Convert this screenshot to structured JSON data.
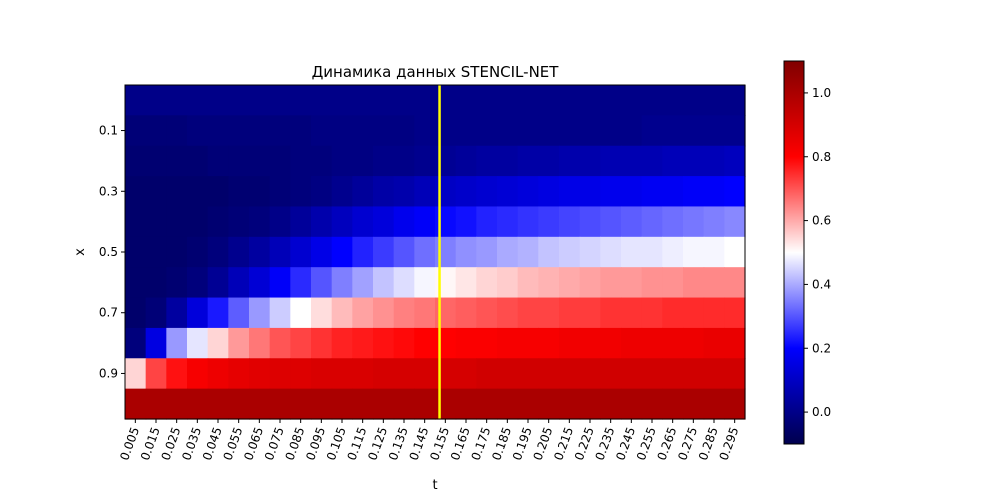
{
  "chart_data": {
    "type": "heatmap",
    "title": "Динамика данных STENCIL-NET",
    "xlabel": "t",
    "ylabel": "x",
    "x_tick_labels": [
      "0.005",
      "0.015",
      "0.025",
      "0.035",
      "0.045",
      "0.055",
      "0.065",
      "0.075",
      "0.085",
      "0.095",
      "0.105",
      "0.115",
      "0.125",
      "0.135",
      "0.145",
      "0.155",
      "0.165",
      "0.175",
      "0.185",
      "0.195",
      "0.205",
      "0.215",
      "0.225",
      "0.235",
      "0.245",
      "0.255",
      "0.265",
      "0.275",
      "0.285",
      "0.295"
    ],
    "y_tick_labels": [
      "0.1",
      "0.3",
      "0.5",
      "0.7",
      "0.9"
    ],
    "x_values": [
      0.0,
      0.01,
      0.02,
      0.03,
      0.04,
      0.05,
      0.06,
      0.07,
      0.08,
      0.09,
      0.1,
      0.11,
      0.12,
      0.13,
      0.14,
      0.15,
      0.16,
      0.17,
      0.18,
      0.19,
      0.2,
      0.21,
      0.22,
      0.23,
      0.24,
      0.25,
      0.26,
      0.27,
      0.28,
      0.29
    ],
    "y_values": [
      0.0,
      0.1,
      0.2,
      0.3,
      0.4,
      0.5,
      0.6,
      0.7,
      0.8,
      0.9,
      1.0
    ],
    "colorbar": {
      "colormap": "seismic",
      "vmin": -0.1,
      "vmax": 1.1,
      "ticks": [
        "0.0",
        "0.2",
        "0.4",
        "0.6",
        "0.8",
        "1.0"
      ]
    },
    "vertical_marker": {
      "t": 0.15,
      "color": "#ffff00"
    },
    "grid": false,
    "values": [
      [
        0.0,
        0.0,
        0.0,
        0.0,
        0.0,
        0.0,
        0.0,
        0.0,
        0.0,
        0.0,
        0.0,
        0.0,
        0.0,
        0.0,
        0.0,
        0.0,
        0.0,
        0.0,
        0.0,
        0.0,
        0.0,
        0.0,
        0.0,
        0.0,
        0.0,
        0.0,
        0.0,
        0.0,
        0.0,
        0.0
      ],
      [
        -0.03,
        -0.03,
        -0.03,
        -0.02,
        -0.02,
        -0.02,
        -0.02,
        -0.02,
        -0.02,
        -0.01,
        -0.01,
        -0.01,
        -0.01,
        -0.01,
        0.0,
        0.0,
        0.0,
        0.0,
        0.0,
        0.0,
        0.0,
        0.0,
        0.0,
        0.0,
        0.0,
        0.01,
        0.01,
        0.01,
        0.01,
        0.01
      ],
      [
        -0.04,
        -0.04,
        -0.04,
        -0.04,
        -0.03,
        -0.03,
        -0.03,
        -0.03,
        -0.02,
        -0.02,
        -0.01,
        -0.01,
        0.0,
        0.0,
        0.01,
        0.02,
        0.03,
        0.04,
        0.04,
        0.05,
        0.05,
        0.06,
        0.06,
        0.07,
        0.07,
        0.07,
        0.08,
        0.08,
        0.08,
        0.09
      ],
      [
        -0.05,
        -0.05,
        -0.05,
        -0.05,
        -0.05,
        -0.04,
        -0.04,
        -0.03,
        -0.02,
        -0.01,
        0.01,
        0.03,
        0.05,
        0.06,
        0.08,
        0.1,
        0.11,
        0.12,
        0.13,
        0.14,
        0.15,
        0.16,
        0.16,
        0.17,
        0.17,
        0.18,
        0.18,
        0.19,
        0.19,
        0.2
      ],
      [
        -0.05,
        -0.05,
        -0.05,
        -0.05,
        -0.04,
        -0.03,
        -0.02,
        0.0,
        0.03,
        0.06,
        0.09,
        0.12,
        0.14,
        0.17,
        0.19,
        0.21,
        0.22,
        0.24,
        0.25,
        0.26,
        0.27,
        0.28,
        0.29,
        0.3,
        0.31,
        0.32,
        0.33,
        0.34,
        0.35,
        0.36
      ],
      [
        -0.05,
        -0.05,
        -0.05,
        -0.04,
        -0.02,
        0.01,
        0.04,
        0.08,
        0.12,
        0.16,
        0.2,
        0.24,
        0.27,
        0.3,
        0.33,
        0.35,
        0.37,
        0.38,
        0.4,
        0.41,
        0.43,
        0.44,
        0.45,
        0.46,
        0.47,
        0.47,
        0.48,
        0.49,
        0.49,
        0.5
      ],
      [
        -0.05,
        -0.05,
        -0.04,
        -0.02,
        0.02,
        0.08,
        0.13,
        0.19,
        0.25,
        0.3,
        0.35,
        0.39,
        0.43,
        0.46,
        0.49,
        0.51,
        0.53,
        0.55,
        0.56,
        0.58,
        0.59,
        0.6,
        0.61,
        0.62,
        0.62,
        0.63,
        0.63,
        0.64,
        0.64,
        0.64
      ],
      [
        -0.05,
        -0.03,
        0.04,
        0.14,
        0.23,
        0.31,
        0.38,
        0.44,
        0.5,
        0.54,
        0.58,
        0.61,
        0.63,
        0.65,
        0.66,
        0.68,
        0.69,
        0.7,
        0.71,
        0.72,
        0.72,
        0.73,
        0.73,
        0.74,
        0.74,
        0.74,
        0.75,
        0.75,
        0.75,
        0.75
      ],
      [
        -0.02,
        0.15,
        0.38,
        0.47,
        0.55,
        0.62,
        0.66,
        0.7,
        0.72,
        0.74,
        0.76,
        0.77,
        0.78,
        0.79,
        0.8,
        0.8,
        0.81,
        0.81,
        0.82,
        0.82,
        0.82,
        0.83,
        0.83,
        0.83,
        0.84,
        0.84,
        0.84,
        0.84,
        0.85,
        0.85
      ],
      [
        0.55,
        0.72,
        0.78,
        0.82,
        0.84,
        0.86,
        0.87,
        0.88,
        0.88,
        0.89,
        0.89,
        0.89,
        0.9,
        0.9,
        0.9,
        0.9,
        0.9,
        0.91,
        0.91,
        0.91,
        0.91,
        0.91,
        0.91,
        0.91,
        0.91,
        0.91,
        0.91,
        0.91,
        0.91,
        0.91
      ],
      [
        1.0,
        1.0,
        1.0,
        1.0,
        1.0,
        1.0,
        1.0,
        1.0,
        1.0,
        1.0,
        1.0,
        1.0,
        1.0,
        1.0,
        1.0,
        1.0,
        1.0,
        1.0,
        1.0,
        1.0,
        1.0,
        1.0,
        1.0,
        1.0,
        1.0,
        1.0,
        1.0,
        1.0,
        1.0,
        1.0
      ]
    ]
  }
}
